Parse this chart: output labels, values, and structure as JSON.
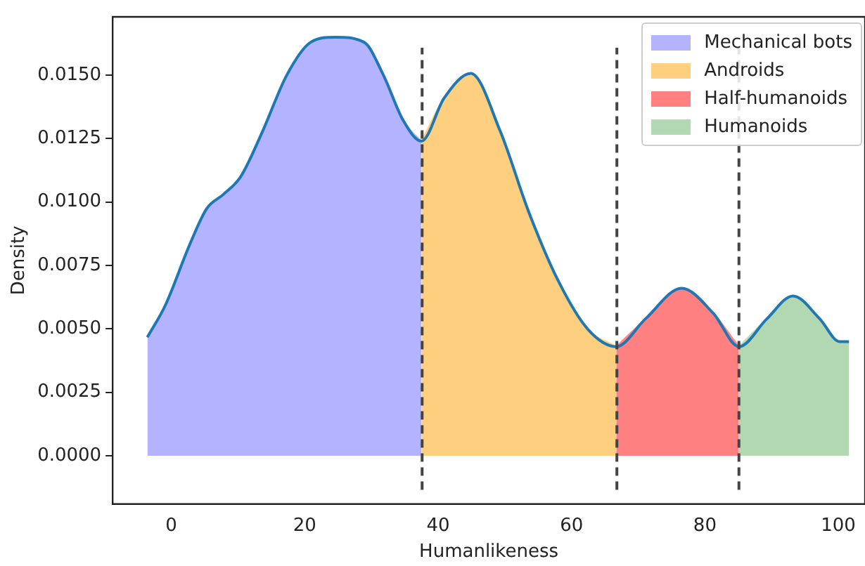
{
  "chart_data": {
    "type": "area",
    "xlabel": "Humanlikeness",
    "ylabel": "Density",
    "xlim": [
      -8.8,
      104
    ],
    "xticks": [
      0,
      20,
      40,
      60,
      80,
      100
    ],
    "ylim": [
      -0.0019,
      0.0173
    ],
    "yticks": [
      {
        "value": 0,
        "label": "0.0000"
      },
      {
        "value": 0.0025,
        "label": "0.0025"
      },
      {
        "value": 0.005,
        "label": "0.0050"
      },
      {
        "value": 0.0075,
        "label": "0.0075"
      },
      {
        "value": 0.01,
        "label": "0.0100"
      },
      {
        "value": 0.0125,
        "label": "0.0125"
      },
      {
        "value": 0.015,
        "label": "0.0150"
      }
    ],
    "grid": false,
    "legend": "top right",
    "marker": "none",
    "series": [
      {
        "type": "area",
        "name": "Mechanical bots",
        "color": "#b3b3ff",
        "x": [
          -3.6,
          -0.9,
          2.8,
          5.3,
          7.8,
          10.4,
          13.7,
          17.3,
          20.9,
          24.6,
          28.9,
          31.8,
          34.8,
          37.5
        ],
        "values": [
          0.00467,
          0.00593,
          0.00835,
          0.00974,
          0.0103,
          0.011,
          0.0128,
          0.015,
          0.0163,
          0.0165,
          0.0163,
          0.015,
          0.0132,
          0.0124
        ]
      },
      {
        "type": "area",
        "name": "Androids",
        "color": "#ffcf80",
        "x": [
          37.5,
          40.9,
          44.9,
          49.3,
          53.6,
          58,
          62.4,
          66.7
        ],
        "values": [
          0.0124,
          0.0141,
          0.01507,
          0.0128,
          0.0096,
          0.0069,
          0.005,
          0.0043
        ]
      },
      {
        "type": "area",
        "name": "Half-humanoids",
        "color": "#ff8080",
        "x": [
          66.7,
          71.1,
          76.5,
          81.3,
          85.1
        ],
        "values": [
          0.0043,
          0.0054,
          0.0066,
          0.0056,
          0.0043
        ]
      },
      {
        "type": "area",
        "name": "Humanoids",
        "color": "#b2d8b2",
        "x": [
          85.1,
          89.3,
          93.2,
          97.2,
          100.2,
          101.6
        ],
        "values": [
          0.0043,
          0.0054,
          0.0063,
          0.0054,
          0.0045,
          0.0045
        ]
      },
      {
        "type": "line",
        "color": "#1f77b4",
        "x": [
          -3.6,
          -0.9,
          2.8,
          5.3,
          7.8,
          10.4,
          13.7,
          17.3,
          20.9,
          24.6,
          28.9,
          31.8,
          34.8,
          37.5,
          40.9,
          44.9,
          49.3,
          53.6,
          58,
          62.4,
          66.7,
          71.1,
          76.5,
          81.3,
          85.1,
          89.3,
          93.2,
          97.2,
          100.2,
          101.6
        ],
        "values": [
          0.00467,
          0.00593,
          0.00835,
          0.00974,
          0.0103,
          0.011,
          0.0128,
          0.015,
          0.0163,
          0.0165,
          0.0163,
          0.015,
          0.0132,
          0.0124,
          0.0141,
          0.01507,
          0.0128,
          0.0096,
          0.0069,
          0.005,
          0.0043,
          0.0054,
          0.0066,
          0.0056,
          0.0043,
          0.0054,
          0.0063,
          0.0054,
          0.0045,
          0.0045
        ]
      }
    ],
    "ref_lines": [
      {
        "axis": "x",
        "value": 37.6,
        "color": "#444444",
        "line_style": "dashed"
      },
      {
        "axis": "x",
        "value": 66.8,
        "color": "#444444",
        "line_style": "dashed"
      },
      {
        "axis": "x",
        "value": 85.1,
        "color": "#444444",
        "line_style": "dashed"
      }
    ]
  }
}
